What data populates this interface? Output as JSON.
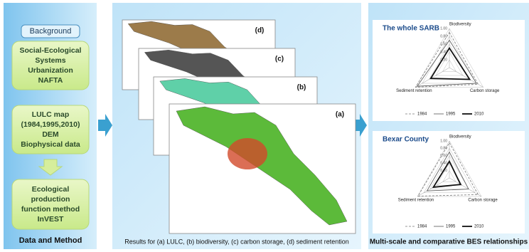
{
  "left_panel": {
    "background": "Background",
    "boxes": [
      [
        "Social-Ecological",
        "Systems",
        "Urbanization",
        "NAFTA"
      ],
      [
        "LULC map",
        "(1984,1995,2010)",
        "DEM",
        "Biophysical data"
      ],
      [
        "Ecological",
        "production",
        "function method",
        "InVEST"
      ]
    ],
    "caption": "Data and Method"
  },
  "middle_panel": {
    "cards": [
      "(d)",
      "(c)",
      "(b)",
      "(a)"
    ],
    "caption": "Results for (a) LULC, (b) biodiversity, (c) carbon storage, (d) sediment retention"
  },
  "right_panel": {
    "caption": "Multi-scale and comparative BES relationships",
    "charts": [
      {
        "type": "radar",
        "title": "The whole SARB",
        "axes": [
          "Biodiversity",
          "Carbon storage",
          "Sediment retention"
        ],
        "rlim": [
          0,
          1
        ],
        "ticks": [
          {
            "value": 0.2,
            "label": "0.20"
          },
          {
            "value": 0.4,
            "label": "0.40"
          },
          {
            "value": 0.6,
            "label": "0.60"
          },
          {
            "value": 0.8,
            "label": "0.80"
          },
          {
            "value": 1,
            "label": "1.00"
          }
        ],
        "series": [
          {
            "name": "1984",
            "color": "#777777",
            "dash": true,
            "values": [
              0.9,
              0.85,
              1.0
            ]
          },
          {
            "name": "1995",
            "color": "#555555",
            "dash": false,
            "values": [
              0.7,
              0.8,
              0.95
            ]
          },
          {
            "name": "2010",
            "color": "#111111",
            "dash": false,
            "values": [
              0.5,
              0.6,
              0.55
            ]
          }
        ]
      },
      {
        "type": "radar",
        "title": "Bexar County",
        "axes": [
          "Biodiversity",
          "Carbon storage",
          "Sediment retention"
        ],
        "rlim": [
          0,
          1
        ],
        "ticks": [
          {
            "value": 0.2,
            "label": "0.20"
          },
          {
            "value": 0.4,
            "label": "0.40"
          },
          {
            "value": 0.6,
            "label": "0.60"
          },
          {
            "value": 0.8,
            "label": "0.80"
          },
          {
            "value": 1,
            "label": "1.00"
          }
        ],
        "series": [
          {
            "name": "1984",
            "color": "#777777",
            "dash": true,
            "values": [
              0.95,
              0.9,
              0.98
            ]
          },
          {
            "name": "1995",
            "color": "#555555",
            "dash": false,
            "values": [
              0.7,
              0.6,
              0.7
            ]
          },
          {
            "name": "2010",
            "color": "#111111",
            "dash": false,
            "values": [
              0.45,
              0.35,
              0.5
            ]
          }
        ]
      }
    ]
  }
}
